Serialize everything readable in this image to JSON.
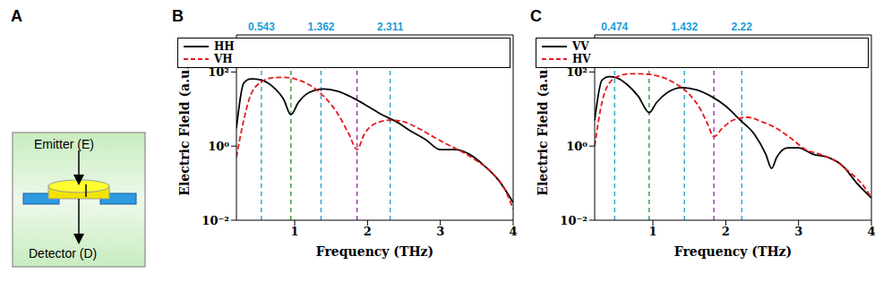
{
  "diagram": {
    "title": "A",
    "labels": {
      "emitter": "Emitter (E)",
      "detector": "Detector (D)"
    }
  },
  "chart_data": [
    {
      "type": "line",
      "title": "B",
      "x_label": "Frequency (THz)",
      "y_label": "Electric Field (a.u.)",
      "log": "y",
      "legend": "upper right",
      "xlim": [
        0.2,
        4
      ],
      "xticks": [
        1,
        2,
        3,
        4
      ],
      "ylim": [
        0.01,
        1000
      ],
      "yticks": [
        {
          "value": 0.01,
          "label": "10⁻²"
        },
        {
          "value": 1,
          "label": "10⁰"
        },
        {
          "value": 100,
          "label": "10²"
        }
      ],
      "annotations": [
        {
          "x": 0.543,
          "color": "#1a9cd8"
        },
        {
          "x": 0.948,
          "color": "#2e8b2e"
        },
        {
          "x": 1.362,
          "color": "#1a9cd8"
        },
        {
          "x": 1.856,
          "color": "#8b2a9e"
        },
        {
          "x": 2.311,
          "color": "#1a9cd8"
        }
      ],
      "series": [
        {
          "name": "HH",
          "color": "#000000",
          "line_style": "solid",
          "x": [
            0.2,
            0.3,
            0.4,
            0.55,
            0.7,
            0.85,
            0.948,
            1.05,
            1.2,
            1.4,
            1.6,
            1.8,
            2.0,
            2.2,
            2.4,
            2.6,
            2.8,
            3.0,
            3.2,
            3.4,
            3.6,
            3.8,
            4.0
          ],
          "values": [
            3,
            50,
            65,
            60,
            40,
            18,
            7,
            15,
            28,
            35,
            30,
            20,
            12,
            7,
            4.5,
            2.5,
            1.5,
            0.8,
            0.8,
            0.6,
            0.3,
            0.12,
            0.03
          ]
        },
        {
          "name": "VH",
          "color": "#e41a1c",
          "line_style": "dashed",
          "x": [
            0.2,
            0.3,
            0.4,
            0.55,
            0.7,
            0.85,
            1.0,
            1.2,
            1.4,
            1.6,
            1.75,
            1.856,
            1.95,
            2.1,
            2.3,
            2.5,
            2.7,
            2.9,
            3.1,
            3.3,
            3.5,
            3.7,
            3.9,
            4.0
          ],
          "values": [
            0.5,
            5,
            25,
            55,
            70,
            72,
            65,
            45,
            22,
            7,
            2,
            0.8,
            2,
            4,
            5,
            4.5,
            3,
            1.8,
            1.1,
            0.7,
            0.4,
            0.2,
            0.06,
            0.02
          ]
        }
      ]
    },
    {
      "type": "line",
      "title": "C",
      "x_label": "Frequency (THz)",
      "y_label": "Electric Field (a.u.)",
      "log": "y",
      "legend": "upper right",
      "xlim": [
        0.2,
        4
      ],
      "xticks": [
        1,
        2,
        3,
        4
      ],
      "ylim": [
        0.01,
        1000
      ],
      "yticks": [
        {
          "value": 0.01,
          "label": "10⁻²"
        },
        {
          "value": 1,
          "label": "10⁰"
        },
        {
          "value": 100,
          "label": "10²"
        }
      ],
      "annotations": [
        {
          "x": 0.474,
          "color": "#1a9cd8"
        },
        {
          "x": 0.948,
          "color": "#2e8b2e"
        },
        {
          "x": 1.432,
          "color": "#1a9cd8"
        },
        {
          "x": 1.837,
          "color": "#8b2a9e"
        },
        {
          "x": 2.22,
          "color": "#1a9cd8"
        }
      ],
      "series": [
        {
          "name": "VV",
          "color": "#000000",
          "line_style": "solid",
          "x": [
            0.2,
            0.3,
            0.4,
            0.5,
            0.65,
            0.8,
            0.948,
            1.05,
            1.2,
            1.4,
            1.6,
            1.8,
            2.0,
            2.2,
            2.4,
            2.55,
            2.63,
            2.7,
            2.85,
            3.0,
            3.2,
            3.4,
            3.6,
            3.8,
            4.0
          ],
          "values": [
            5,
            60,
            75,
            70,
            45,
            22,
            8,
            15,
            28,
            38,
            33,
            22,
            12,
            5,
            2,
            0.6,
            0.25,
            0.5,
            0.9,
            0.9,
            0.6,
            0.5,
            0.3,
            0.1,
            0.04
          ]
        },
        {
          "name": "HV",
          "color": "#e41a1c",
          "line_style": "dashed",
          "x": [
            0.2,
            0.3,
            0.4,
            0.55,
            0.7,
            0.9,
            1.1,
            1.3,
            1.5,
            1.65,
            1.75,
            1.837,
            1.95,
            2.1,
            2.3,
            2.5,
            2.7,
            2.9,
            3.1,
            3.3,
            3.5,
            3.7,
            3.9,
            4.0
          ],
          "values": [
            1,
            15,
            50,
            80,
            90,
            88,
            75,
            50,
            25,
            10,
            4,
            1.8,
            3,
            5,
            6,
            4.5,
            3,
            1.6,
            0.8,
            0.6,
            0.4,
            0.2,
            0.08,
            0.04
          ]
        }
      ]
    }
  ]
}
